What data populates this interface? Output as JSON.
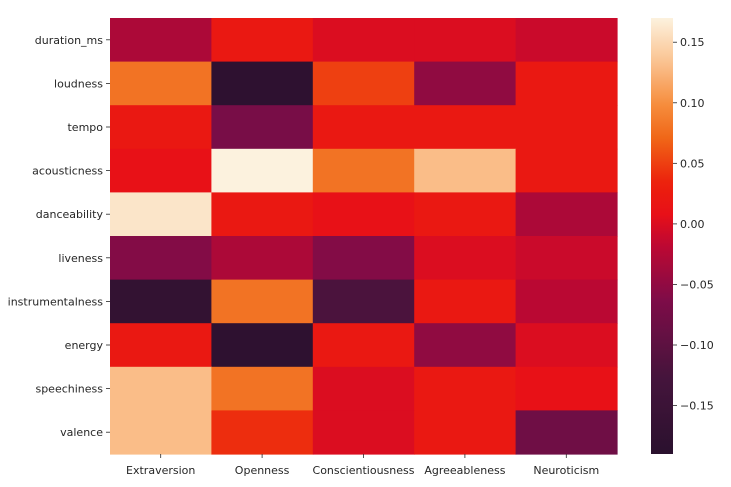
{
  "chart_data": {
    "type": "heatmap",
    "title": "",
    "xlabel": "",
    "ylabel": "",
    "x_categories": [
      "Extraversion",
      "Openness",
      "Conscientiousness",
      "Agreeableness",
      "Neuroticism"
    ],
    "y_categories": [
      "duration_ms",
      "loudness",
      "tempo",
      "acousticness",
      "danceability",
      "liveness",
      "instrumentalness",
      "energy",
      "speechiness",
      "valence"
    ],
    "values": [
      [
        -0.03,
        0.02,
        0.0,
        0.0,
        -0.01
      ],
      [
        0.08,
        -0.18,
        0.05,
        -0.05,
        0.02
      ],
      [
        0.02,
        -0.07,
        0.02,
        0.02,
        0.02
      ],
      [
        0.01,
        0.17,
        0.08,
        0.13,
        0.02
      ],
      [
        0.16,
        0.02,
        0.01,
        0.02,
        -0.03
      ],
      [
        -0.06,
        -0.03,
        -0.06,
        0.0,
        -0.01
      ],
      [
        -0.17,
        0.08,
        -0.12,
        0.02,
        -0.02
      ],
      [
        0.02,
        -0.18,
        0.02,
        -0.05,
        0.0
      ],
      [
        0.13,
        0.08,
        0.0,
        0.02,
        0.01
      ],
      [
        0.13,
        0.04,
        0.0,
        0.02,
        -0.08
      ]
    ],
    "colorbar": {
      "colormap": "rocket",
      "vmin": -0.19,
      "vmax": 0.17,
      "ticks": [
        0.15,
        0.1,
        0.05,
        0.0,
        -0.05,
        -0.1,
        -0.15
      ],
      "tick_labels": [
        "0.15",
        "0.10",
        "0.05",
        "0.00",
        "−0.05",
        "−0.10",
        "−0.15"
      ]
    },
    "grid": false,
    "legend": "colorbar-right"
  }
}
